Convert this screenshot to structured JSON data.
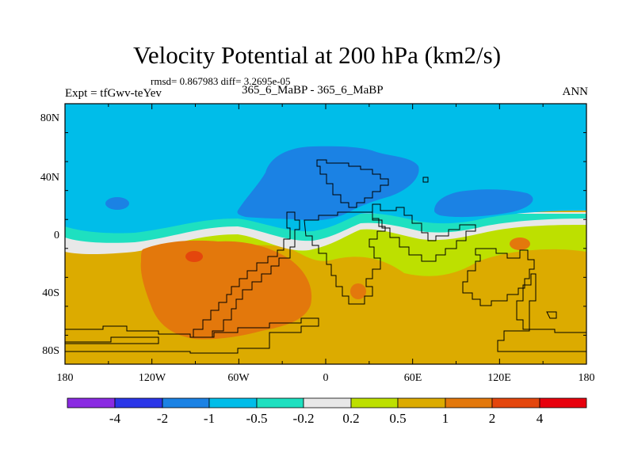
{
  "title": "Velocity Potential at 200 hPa (km2/s)",
  "stats": "rmsd= 0.867983 diff= 3.2695e-05",
  "experiment": "Expt = tfGwv-teYev",
  "cases": "365_6_MaBP - 365_6_MaBP",
  "season": "ANN",
  "map": {
    "projection": "cylindrical equidistant",
    "lon_range": [
      -180,
      180
    ],
    "lat_range": [
      -90,
      90
    ],
    "lat_ticks": [
      "80N",
      "40N",
      "0",
      "40S",
      "80S"
    ],
    "lon_ticks": [
      "180",
      "120W",
      "60W",
      "0",
      "60E",
      "120E",
      "180"
    ]
  },
  "colorbar": {
    "colors": [
      "#8a2be2",
      "#2b36e8",
      "#1b82e4",
      "#00bde9",
      "#1ee0c0",
      "#e8e8e8",
      "#bde000",
      "#dcab00",
      "#e3780c",
      "#e4460d",
      "#e8000d"
    ],
    "labels": [
      "-4",
      "-2",
      "-1",
      "-0.5",
      "-0.2",
      "0.2",
      "0.5",
      "1",
      "2",
      "4"
    ]
  }
}
